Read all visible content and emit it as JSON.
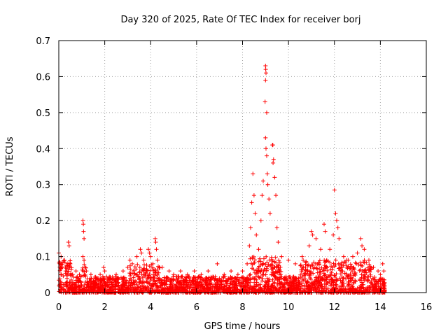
{
  "chart_data": {
    "type": "scatter",
    "title": "Day 320 of 2025, Rate Of TEC Index for receiver borj",
    "xlabel": "GPS time / hours",
    "ylabel": "ROTI / TECUs",
    "xlim": [
      0,
      16
    ],
    "ylim": [
      0,
      0.7
    ],
    "x_ticks": [
      0,
      2,
      4,
      6,
      8,
      10,
      12,
      14,
      16
    ],
    "y_ticks": [
      0,
      0.1,
      0.2,
      0.3,
      0.4,
      0.5,
      0.6,
      0.7
    ],
    "grid": true,
    "marker": "+",
    "color": "#ff0000",
    "data_end_hour": 14.2,
    "series": [
      {
        "name": "ROTI",
        "points": [
          [
            0.0,
            0.11
          ],
          [
            0.05,
            0.08
          ],
          [
            0.1,
            0.1
          ],
          [
            0.15,
            0.07
          ],
          [
            0.25,
            0.09
          ],
          [
            0.3,
            0.06
          ],
          [
            0.42,
            0.14
          ],
          [
            0.45,
            0.13
          ],
          [
            0.5,
            0.08
          ],
          [
            0.6,
            0.05
          ],
          [
            0.75,
            0.06
          ],
          [
            0.9,
            0.05
          ],
          [
            1.05,
            0.2
          ],
          [
            1.07,
            0.19
          ],
          [
            1.08,
            0.17
          ],
          [
            1.1,
            0.15
          ],
          [
            1.05,
            0.1
          ],
          [
            1.1,
            0.09
          ],
          [
            1.2,
            0.06
          ],
          [
            1.4,
            0.05
          ],
          [
            1.6,
            0.04
          ],
          [
            1.8,
            0.05
          ],
          [
            1.95,
            0.07
          ],
          [
            2.0,
            0.06
          ],
          [
            2.2,
            0.04
          ],
          [
            2.5,
            0.05
          ],
          [
            2.8,
            0.06
          ],
          [
            3.0,
            0.07
          ],
          [
            3.1,
            0.09
          ],
          [
            3.2,
            0.08
          ],
          [
            3.4,
            0.1
          ],
          [
            3.55,
            0.12
          ],
          [
            3.6,
            0.11
          ],
          [
            3.7,
            0.09
          ],
          [
            3.9,
            0.12
          ],
          [
            3.95,
            0.11
          ],
          [
            4.0,
            0.1
          ],
          [
            4.1,
            0.08
          ],
          [
            4.2,
            0.15
          ],
          [
            4.22,
            0.14
          ],
          [
            4.25,
            0.12
          ],
          [
            4.3,
            0.09
          ],
          [
            4.5,
            0.07
          ],
          [
            4.8,
            0.06
          ],
          [
            5.0,
            0.05
          ],
          [
            5.3,
            0.06
          ],
          [
            5.6,
            0.05
          ],
          [
            5.9,
            0.06
          ],
          [
            6.2,
            0.05
          ],
          [
            6.5,
            0.06
          ],
          [
            6.9,
            0.08
          ],
          [
            7.2,
            0.05
          ],
          [
            7.5,
            0.06
          ],
          [
            7.8,
            0.05
          ],
          [
            8.0,
            0.06
          ],
          [
            8.2,
            0.08
          ],
          [
            8.3,
            0.13
          ],
          [
            8.35,
            0.18
          ],
          [
            8.4,
            0.25
          ],
          [
            8.45,
            0.33
          ],
          [
            8.5,
            0.27
          ],
          [
            8.55,
            0.22
          ],
          [
            8.6,
            0.16
          ],
          [
            8.7,
            0.12
          ],
          [
            8.8,
            0.2
          ],
          [
            8.85,
            0.27
          ],
          [
            8.9,
            0.31
          ],
          [
            9.0,
            0.63
          ],
          [
            9.01,
            0.62
          ],
          [
            9.02,
            0.61
          ],
          [
            9.0,
            0.59
          ],
          [
            8.98,
            0.53
          ],
          [
            9.05,
            0.5
          ],
          [
            9.0,
            0.43
          ],
          [
            9.02,
            0.4
          ],
          [
            9.05,
            0.38
          ],
          [
            9.08,
            0.33
          ],
          [
            9.1,
            0.3
          ],
          [
            9.15,
            0.26
          ],
          [
            9.2,
            0.22
          ],
          [
            9.3,
            0.41
          ],
          [
            9.32,
            0.41
          ],
          [
            9.35,
            0.37
          ],
          [
            9.33,
            0.36
          ],
          [
            9.4,
            0.32
          ],
          [
            9.45,
            0.27
          ],
          [
            9.5,
            0.18
          ],
          [
            9.55,
            0.14
          ],
          [
            9.7,
            0.1
          ],
          [
            10.0,
            0.09
          ],
          [
            10.3,
            0.08
          ],
          [
            10.6,
            0.1
          ],
          [
            10.9,
            0.13
          ],
          [
            11.0,
            0.17
          ],
          [
            11.05,
            0.16
          ],
          [
            11.2,
            0.15
          ],
          [
            11.4,
            0.12
          ],
          [
            11.55,
            0.19
          ],
          [
            11.6,
            0.17
          ],
          [
            11.8,
            0.12
          ],
          [
            11.95,
            0.16
          ],
          [
            12.0,
            0.285
          ],
          [
            12.05,
            0.22
          ],
          [
            12.1,
            0.2
          ],
          [
            12.15,
            0.18
          ],
          [
            12.2,
            0.15
          ],
          [
            12.4,
            0.1
          ],
          [
            12.6,
            0.09
          ],
          [
            12.8,
            0.1
          ],
          [
            13.0,
            0.11
          ],
          [
            13.15,
            0.15
          ],
          [
            13.2,
            0.13
          ],
          [
            13.3,
            0.12
          ],
          [
            13.5,
            0.09
          ],
          [
            13.7,
            0.07
          ],
          [
            13.9,
            0.06
          ],
          [
            14.0,
            0.05
          ],
          [
            14.1,
            0.08
          ],
          [
            14.15,
            0.06
          ]
        ]
      }
    ]
  }
}
